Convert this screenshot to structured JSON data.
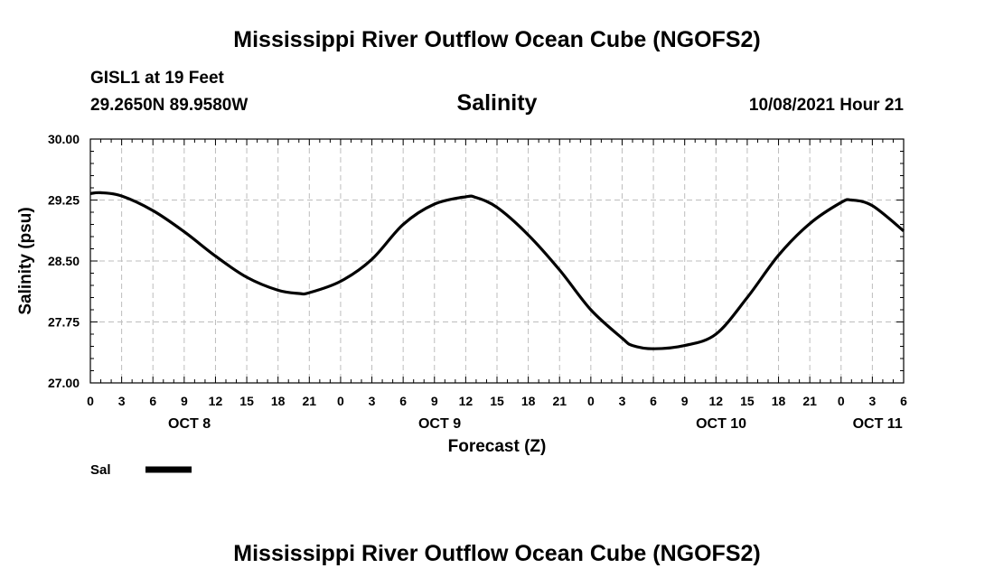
{
  "header": {
    "title": "Mississippi River Outflow Ocean Cube (NGOFS2)",
    "station": "GISL1 at 19 Feet",
    "coordinates": "29.2650N  89.9580W",
    "date": "10/08/2021 Hour 21"
  },
  "footer": {
    "title": "Mississippi River Outflow Ocean Cube (NGOFS2)"
  },
  "chart_data": {
    "type": "line",
    "title": "Salinity",
    "xlabel": "Forecast (Z)",
    "ylabel": "Salinity (psu)",
    "xlim": [
      0,
      78
    ],
    "ylim": [
      27.0,
      30.0
    ],
    "x_ticks": [
      0,
      3,
      6,
      9,
      12,
      15,
      18,
      21,
      24,
      27,
      30,
      33,
      36,
      39,
      42,
      45,
      48,
      51,
      54,
      57,
      60,
      63,
      66,
      69,
      72,
      75,
      78
    ],
    "x_tick_labels": [
      "0",
      "3",
      "6",
      "9",
      "12",
      "15",
      "18",
      "21",
      "0",
      "3",
      "6",
      "9",
      "12",
      "15",
      "18",
      "21",
      "0",
      "3",
      "6",
      "9",
      "12",
      "15",
      "18",
      "21",
      "0",
      "3",
      "6"
    ],
    "y_ticks": [
      27.0,
      27.75,
      28.5,
      29.25,
      30.0
    ],
    "y_tick_labels": [
      "27.00",
      "27.75",
      "28.50",
      "29.25",
      "30.00"
    ],
    "day_labels": [
      {
        "x": 9.5,
        "label": "OCT 8"
      },
      {
        "x": 33.5,
        "label": "OCT 9"
      },
      {
        "x": 60.5,
        "label": "OCT 10"
      },
      {
        "x": 75.5,
        "label": "OCT 11"
      }
    ],
    "grid": true,
    "legend": {
      "position": "bottom-left",
      "entries": [
        "Sal"
      ]
    },
    "series": [
      {
        "name": "Sal",
        "x": [
          0,
          1,
          3,
          6,
          9,
          12,
          15,
          18,
          20,
          21,
          24,
          27,
          30,
          33,
          36,
          37,
          39,
          42,
          45,
          48,
          51,
          52,
          54,
          57,
          60,
          63,
          66,
          69,
          72,
          73,
          75,
          78
        ],
        "values": [
          29.33,
          29.34,
          29.3,
          29.12,
          28.86,
          28.56,
          28.3,
          28.14,
          28.1,
          28.11,
          28.25,
          28.52,
          28.95,
          29.2,
          29.29,
          29.28,
          29.16,
          28.82,
          28.39,
          27.9,
          27.55,
          27.46,
          27.42,
          27.46,
          27.6,
          28.05,
          28.57,
          28.96,
          29.22,
          29.25,
          29.18,
          28.87
        ]
      }
    ]
  }
}
